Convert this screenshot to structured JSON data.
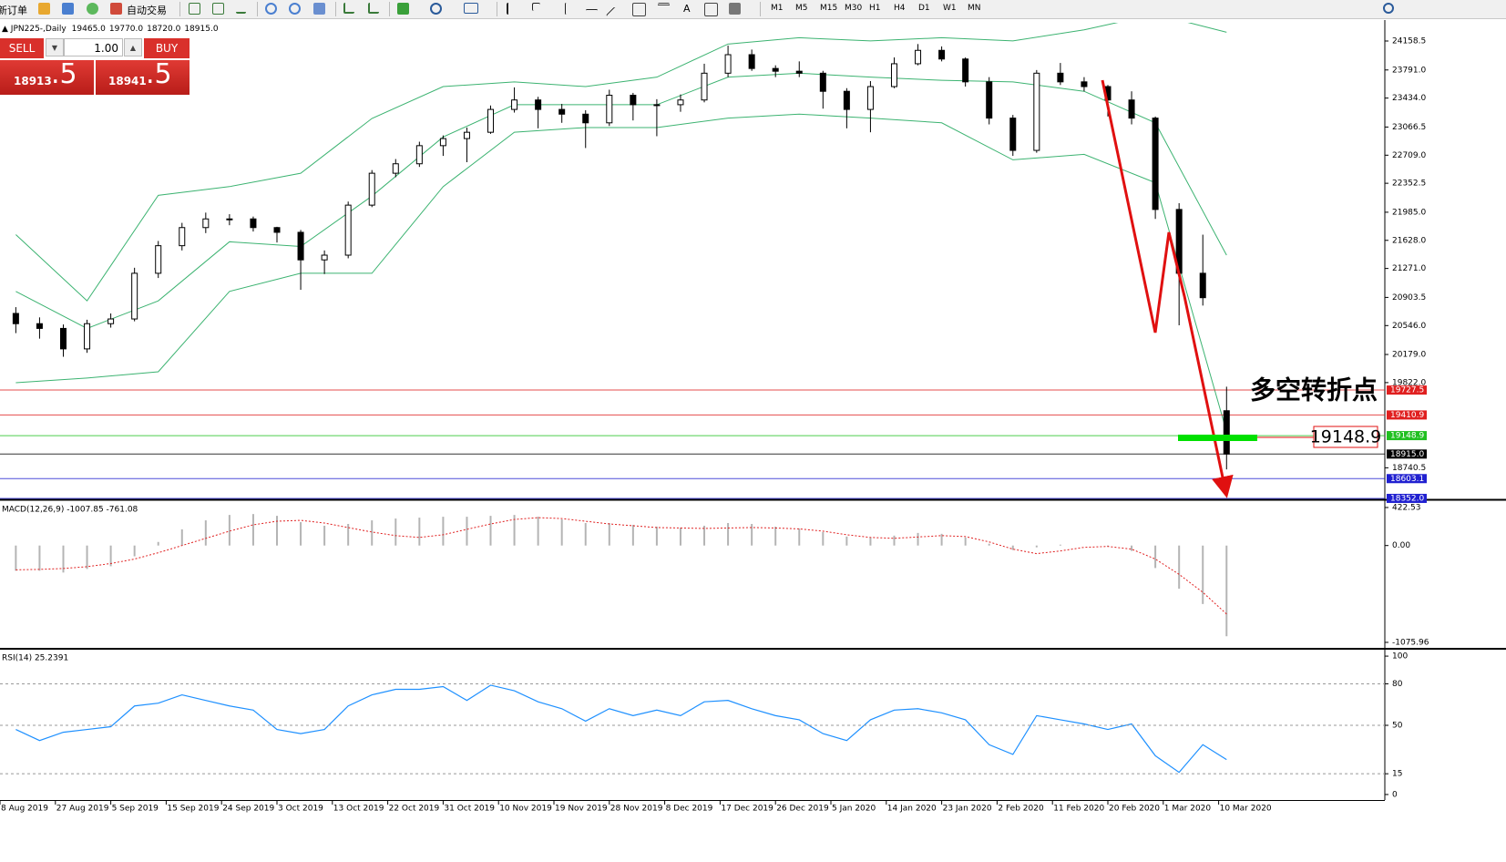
{
  "toolbar": {
    "new_order": "新订单",
    "auto_trading": "自动交易",
    "timeframes": [
      "M1",
      "M5",
      "M15",
      "M30",
      "H1",
      "H4",
      "D1",
      "W1",
      "MN"
    ]
  },
  "trade_panel": {
    "sell": "SELL",
    "buy": "BUY",
    "lot": "1.00",
    "sell_price": "18913",
    "sell_pip": ".5",
    "buy_price": "18941",
    "buy_pip": ".5"
  },
  "chart_data": [
    {
      "type": "candlestick",
      "title": "JPN225-,Daily",
      "header_values": [
        "19465.0",
        "19770.0",
        "18720.0",
        "18915.0"
      ],
      "x": [
        2,
        5,
        8,
        11,
        14,
        17,
        20,
        23,
        26,
        29,
        32,
        35,
        38,
        41,
        44,
        47,
        50,
        53,
        56,
        59,
        62,
        65,
        68,
        71,
        74,
        77,
        80,
        83,
        86,
        89,
        92,
        95,
        98,
        101,
        104,
        107,
        110,
        113,
        116,
        119,
        122,
        125,
        128,
        131,
        134,
        137,
        140,
        143,
        146,
        149,
        152,
        155
      ],
      "open": [
        20700,
        20570,
        20510,
        20250,
        20570,
        20630,
        21210,
        21560,
        21790,
        21900,
        21900,
        21790,
        21730,
        21380,
        21440,
        22075,
        22480,
        22600,
        22830,
        22920,
        23000,
        23290,
        23410,
        23290,
        23230,
        23120,
        23470,
        23350,
        23350,
        23410,
        23750,
        23985,
        23810,
        23775,
        23750,
        23520,
        23290,
        23580,
        23870,
        24040,
        23930,
        23640,
        23180,
        22770,
        23750,
        23640,
        23580,
        23410,
        23180,
        22020,
        21210,
        19465
      ],
      "high": [
        20780,
        20650,
        20560,
        20620,
        20700,
        21280,
        21620,
        21850,
        21980,
        21960,
        21930,
        21800,
        21760,
        21500,
        22120,
        22520,
        22660,
        22880,
        22960,
        23060,
        23340,
        23570,
        23450,
        23360,
        23280,
        23540,
        23500,
        23420,
        23480,
        23870,
        24100,
        24050,
        23850,
        23900,
        23780,
        23560,
        23650,
        23950,
        24120,
        24090,
        23950,
        23700,
        23220,
        23790,
        23880,
        23700,
        23600,
        23520,
        23200,
        22100,
        21700,
        19770
      ],
      "low": [
        20450,
        20380,
        20150,
        20200,
        20520,
        20600,
        21150,
        21500,
        21720,
        21820,
        21740,
        21600,
        21000,
        21200,
        21400,
        22050,
        22430,
        22560,
        22700,
        22620,
        22980,
        23250,
        23050,
        23120,
        22800,
        23080,
        23150,
        22950,
        23260,
        23380,
        23700,
        23780,
        23700,
        23700,
        23300,
        23050,
        23000,
        23560,
        23850,
        23900,
        23580,
        23100,
        22700,
        22740,
        23600,
        23520,
        23200,
        23100,
        21900,
        20550,
        20800,
        18720
      ],
      "close": [
        20570,
        20510,
        20250,
        20570,
        20630,
        21210,
        21560,
        21790,
        21900,
        21900,
        21790,
        21730,
        21380,
        21440,
        22075,
        22480,
        22600,
        22830,
        22920,
        23000,
        23290,
        23410,
        23290,
        23230,
        23120,
        23470,
        23350,
        23350,
        23410,
        23750,
        23985,
        23810,
        23775,
        23750,
        23520,
        23290,
        23580,
        23870,
        24040,
        23930,
        23640,
        23180,
        22770,
        23750,
        23640,
        23580,
        23410,
        23180,
        22020,
        21210,
        20900,
        18915
      ],
      "up_color": "#ffffff",
      "down_color": "#000000",
      "bands": {
        "color": "#3cb371",
        "x": [
          2,
          11,
          20,
          29,
          38,
          47,
          56,
          65,
          74,
          83,
          92,
          101,
          110,
          119,
          128,
          137,
          146,
          155
        ],
        "upper": [
          21700,
          20860,
          22200,
          22310,
          22480,
          23175,
          23580,
          23640,
          23580,
          23700,
          24120,
          24200,
          24160,
          24200,
          24160,
          24300,
          24500,
          24270
        ],
        "middle": [
          20980,
          20510,
          20860,
          21610,
          21550,
          22190,
          22940,
          23350,
          23350,
          23350,
          23700,
          23750,
          23700,
          23660,
          23640,
          23520,
          23120,
          21440
        ],
        "lower": [
          19820,
          19880,
          19960,
          20980,
          21210,
          21210,
          22310,
          23000,
          23060,
          23060,
          23180,
          23230,
          23180,
          23120,
          22650,
          22720,
          22360,
          19200
        ]
      },
      "levels": [
        {
          "value": 19727.5,
          "label": "19727.5",
          "color": "#e02020"
        },
        {
          "value": 19410.9,
          "label": "19410.9",
          "color": "#e02020"
        },
        {
          "value": 19148.9,
          "label": "19148.9",
          "color": "#20c020"
        },
        {
          "value": 18915,
          "label": "18915.0",
          "color": "#000000"
        },
        {
          "value": 18603.1,
          "label": "18603.1",
          "color": "#2020d0"
        },
        {
          "value": 18352,
          "label": "18352.0",
          "color": "#2020d0"
        }
      ],
      "annotations": [
        "多空转折点",
        "19148.9"
      ],
      "xlim": [
        0,
        175
      ],
      "ylim": [
        18340,
        24390
      ],
      "yticks": [
        24158.5,
        {
          "value": 23791,
          "label": "23791.0"
        },
        {
          "value": 23434,
          "label": "23434.0"
        },
        23066.5,
        {
          "value": 22709,
          "label": "22709.0"
        },
        22352.5,
        {
          "value": 21985,
          "label": "21985.0"
        },
        {
          "value": 21628,
          "label": "21628.0"
        },
        {
          "value": 21271,
          "label": "21271.0"
        },
        20903.5,
        {
          "value": 20546,
          "label": "20546.0"
        },
        {
          "value": 20179,
          "label": "20179.0"
        },
        {
          "value": 19822,
          "label": "19822.0"
        },
        18740.5
      ]
    },
    {
      "type": "macd",
      "title": "MACD(12,26,9) -1007.85 -761.08",
      "xlim": [
        0,
        175
      ],
      "ylim": [
        -1127,
        483
      ],
      "histogram": [
        -280,
        -280,
        -300,
        -260,
        -230,
        -120,
        40,
        180,
        280,
        340,
        350,
        330,
        260,
        220,
        240,
        280,
        300,
        310,
        320,
        320,
        330,
        340,
        320,
        290,
        250,
        250,
        230,
        210,
        200,
        220,
        250,
        240,
        210,
        190,
        150,
        100,
        90,
        110,
        140,
        130,
        90,
        20,
        -50,
        -20,
        10,
        0,
        -10,
        -60,
        -250,
        -480,
        -650,
        -1007.85
      ],
      "signal": [
        -270,
        -265,
        -255,
        -235,
        -200,
        -150,
        -80,
        0,
        80,
        160,
        230,
        270,
        280,
        250,
        200,
        150,
        110,
        90,
        120,
        180,
        240,
        290,
        310,
        300,
        270,
        240,
        220,
        200,
        195,
        190,
        195,
        200,
        195,
        185,
        160,
        120,
        90,
        80,
        95,
        110,
        100,
        40,
        -40,
        -90,
        -60,
        -20,
        -10,
        -40,
        -150,
        -320,
        -520,
        -761.08
      ],
      "hist_color": "#b4b4b4",
      "signal_color": "#e02020",
      "yticks": [
        422.53,
        {
          "value": 0,
          "label": "0.00"
        },
        -1075.96
      ]
    },
    {
      "type": "line",
      "title": "RSI(14) 25.2391",
      "xlim": [
        0,
        175
      ],
      "ylim": [
        -4,
        104
      ],
      "color": "#1e90ff",
      "grid": true,
      "values": [
        47,
        39,
        45,
        47,
        49,
        64,
        66,
        72,
        68,
        64,
        61,
        47,
        44,
        47,
        64,
        72,
        76,
        76,
        78,
        68,
        79,
        75,
        67,
        62,
        53,
        62,
        57,
        61,
        57,
        67,
        68,
        62,
        57,
        54,
        44,
        39,
        54,
        61,
        62,
        59,
        54,
        36,
        29,
        57,
        54,
        51,
        47,
        51,
        28,
        16,
        36,
        25.2391
      ],
      "yticks": [
        100,
        80,
        50,
        15,
        0
      ],
      "xticks": [
        {
          "value": 0,
          "label": "8 Aug 2019"
        },
        {
          "value": 7,
          "label": "27 Aug 2019"
        },
        {
          "value": 14,
          "label": "5 Sep 2019"
        },
        {
          "value": 21,
          "label": "15 Sep 2019"
        },
        {
          "value": 28,
          "label": "24 Sep 2019"
        },
        {
          "value": 35,
          "label": "3 Oct 2019"
        },
        {
          "value": 42,
          "label": "13 Oct 2019"
        },
        {
          "value": 49,
          "label": "22 Oct 2019"
        },
        {
          "value": 56,
          "label": "31 Oct 2019"
        },
        {
          "value": 63,
          "label": "10 Nov 2019"
        },
        {
          "value": 70,
          "label": "19 Nov 2019"
        },
        {
          "value": 77,
          "label": "28 Nov 2019"
        },
        {
          "value": 84,
          "label": "8 Dec 2019"
        },
        {
          "value": 91,
          "label": "17 Dec 2019"
        },
        {
          "value": 98,
          "label": "26 Dec 2019"
        },
        {
          "value": 105,
          "label": "5 Jan 2020"
        },
        {
          "value": 112,
          "label": "14 Jan 2020"
        },
        {
          "value": 119,
          "label": "23 Jan 2020"
        },
        {
          "value": 126,
          "label": "2 Feb 2020"
        },
        {
          "value": 133,
          "label": "11 Feb 2020"
        },
        {
          "value": 140,
          "label": "20 Feb 2020"
        },
        {
          "value": 147,
          "label": "1 Mar 2020"
        },
        {
          "value": 154,
          "label": "10 Mar 2020"
        }
      ]
    }
  ]
}
